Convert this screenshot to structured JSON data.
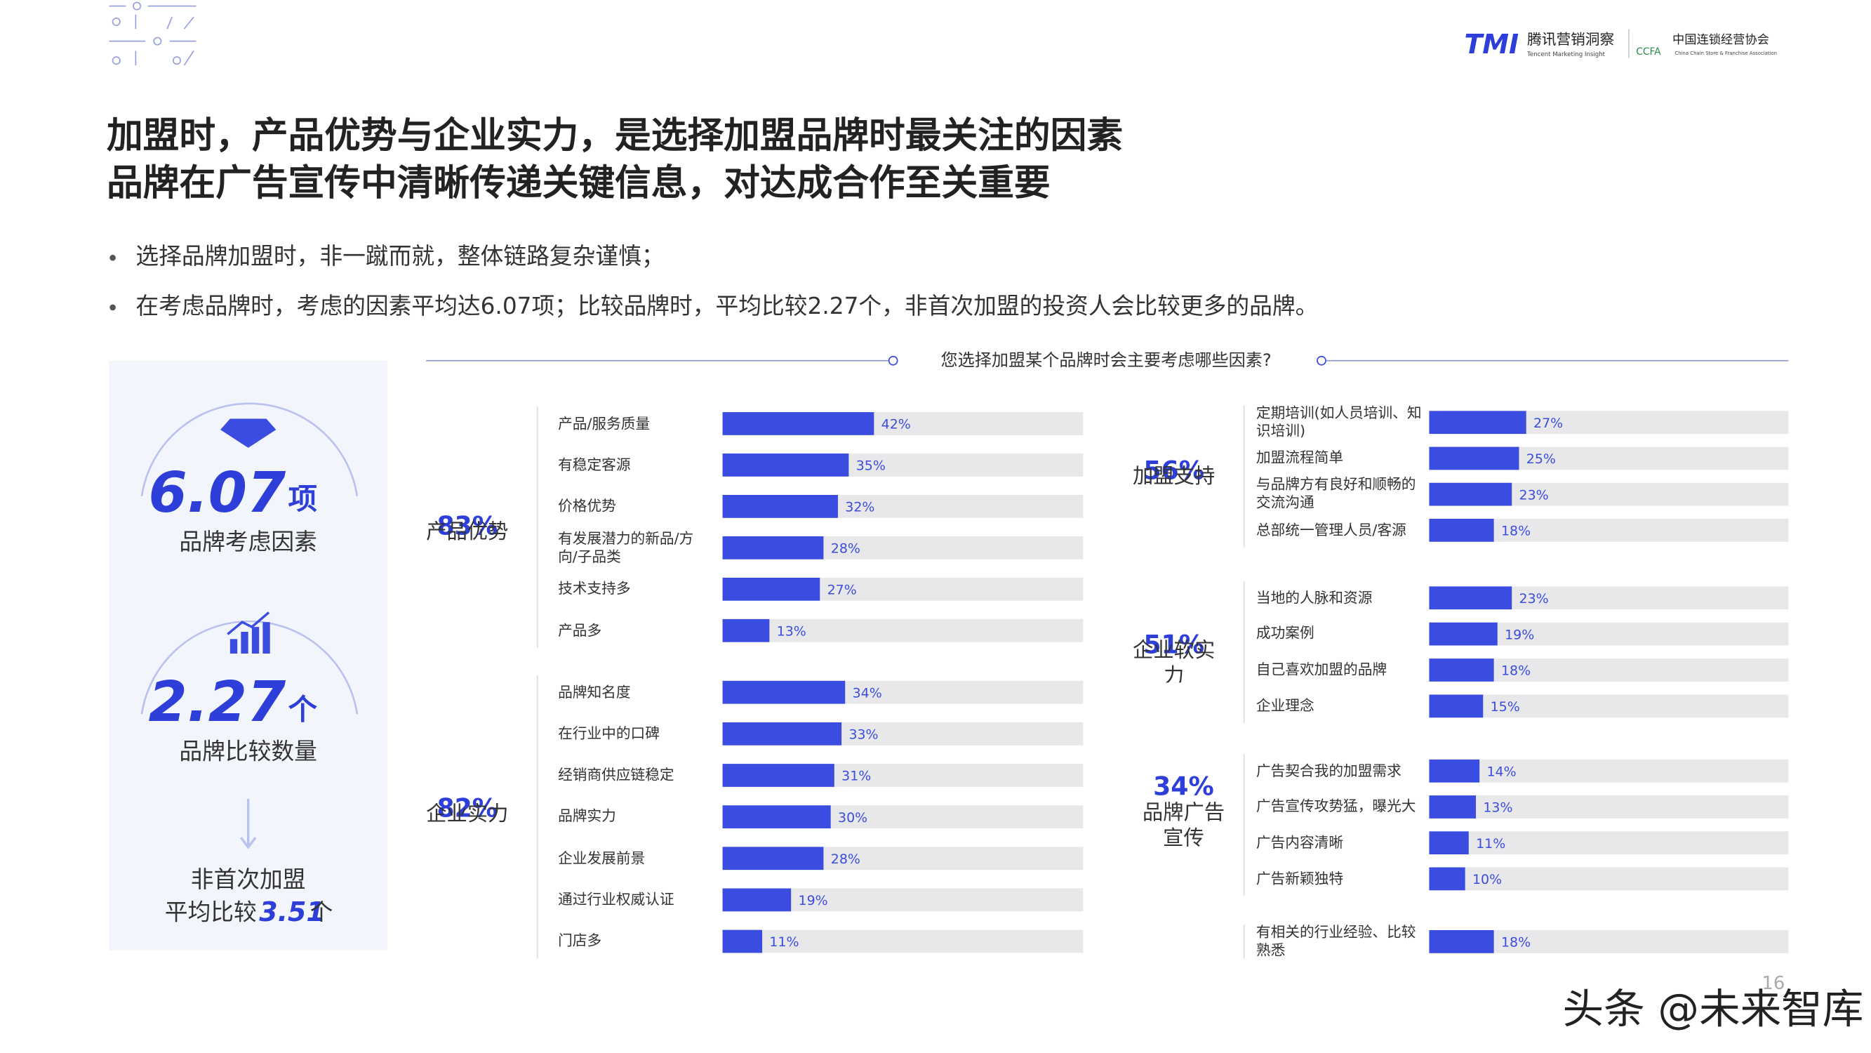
{
  "header": {
    "title_lines": [
      "加盟时，产品优势与企业实力，是选择加盟品牌时最关注的因素",
      "品牌在广告宣传中清晰传递关键信息，对达成合作至关重要"
    ],
    "bullets": [
      "选择品牌加盟时，非一蹴而就，整体链路复杂谨慎；",
      "在考虑品牌时，考虑的因素平均达6.07项；比较品牌时，平均比较2.27个，非首次加盟的投资人会比较更多的品牌。"
    ],
    "logo_tmi": "TMI",
    "logo_tmi_name": "腾讯营销洞察",
    "logo_tmi_en": "Tencent Marketing Insight",
    "logo_ccfa": "CCFA",
    "logo_ccfa_name": "中国连锁经营协会",
    "logo_ccfa_en": "China Chain Store & Franchise Association"
  },
  "question": "您选择加盟某个品牌时会主要考虑哪些因素?",
  "panel": {
    "factors_value": "6.07",
    "factors_unit": "项",
    "factors_label": "品牌考虑因素",
    "compare_value": "2.27",
    "compare_unit": "个",
    "compare_label": "品牌比较数量",
    "repeat_line1": "非首次加盟",
    "repeat_prefix": "平均比较",
    "repeat_value": "3.51",
    "repeat_unit": "个"
  },
  "chart_data": [
    {
      "type": "bar",
      "orientation": "horizontal",
      "title": "产品优势",
      "subtitle": "83%",
      "categories": [
        "产品/服务质量",
        "有稳定客源",
        "价格优势",
        "有发展潜力的新品/方向/子品类",
        "技术支持多",
        "产品多"
      ],
      "values": [
        42,
        35,
        32,
        28,
        27,
        13
      ],
      "value_labels": [
        "42%",
        "35%",
        "32%",
        "28%",
        "27%",
        "13%"
      ],
      "color": "#3b4de0",
      "xlim": [
        0,
        100
      ]
    },
    {
      "type": "bar",
      "orientation": "horizontal",
      "title": "企业实力",
      "subtitle": "82%",
      "categories": [
        "品牌知名度",
        "在行业中的口碑",
        "经销商供应链稳定",
        "品牌实力",
        "企业发展前景",
        "通过行业权威认证",
        "门店多"
      ],
      "values": [
        34,
        33,
        31,
        30,
        28,
        19,
        11
      ],
      "value_labels": [
        "34%",
        "33%",
        "31%",
        "30%",
        "28%",
        "19%",
        "11%"
      ],
      "color": "#3b4de0",
      "xlim": [
        0,
        100
      ]
    },
    {
      "type": "bar",
      "orientation": "horizontal",
      "title": "加盟支持",
      "subtitle": "56%",
      "categories": [
        "定期培训(如人员培训、知识培训)",
        "加盟流程简单",
        "与品牌方有良好和顺畅的交流沟通",
        "总部统一管理人员/客源"
      ],
      "values": [
        27,
        25,
        23,
        18
      ],
      "value_labels": [
        "27%",
        "25%",
        "23%",
        "18%"
      ],
      "color": "#3b4de0",
      "xlim": [
        0,
        100
      ]
    },
    {
      "type": "bar",
      "orientation": "horizontal",
      "title": "企业软实力",
      "subtitle": "51%",
      "categories": [
        "当地的人脉和资源",
        "成功案例",
        "自己喜欢加盟的品牌",
        "企业理念"
      ],
      "values": [
        23,
        19,
        18,
        15
      ],
      "value_labels": [
        "23%",
        "19%",
        "18%",
        "15%"
      ],
      "color": "#3b4de0",
      "xlim": [
        0,
        100
      ]
    },
    {
      "type": "bar",
      "orientation": "horizontal",
      "title": "品牌广告宣传",
      "subtitle": "34%",
      "categories": [
        "广告契合我的加盟需求",
        "广告宣传攻势猛，曝光大",
        "广告内容清晰",
        "广告新颖独特"
      ],
      "values": [
        14,
        13,
        11,
        10
      ],
      "value_labels": [
        "14%",
        "13%",
        "11%",
        "10%"
      ],
      "color": "#3b4de0",
      "xlim": [
        0,
        100
      ]
    },
    {
      "type": "bar",
      "orientation": "horizontal",
      "categories": [
        "有相关的行业经验、比较熟悉"
      ],
      "values": [
        18
      ],
      "value_labels": [
        "18%"
      ],
      "color": "#3b4de0",
      "xlim": [
        0,
        100
      ]
    }
  ],
  "page_number": "16",
  "watermark": "头条 @未来智库"
}
